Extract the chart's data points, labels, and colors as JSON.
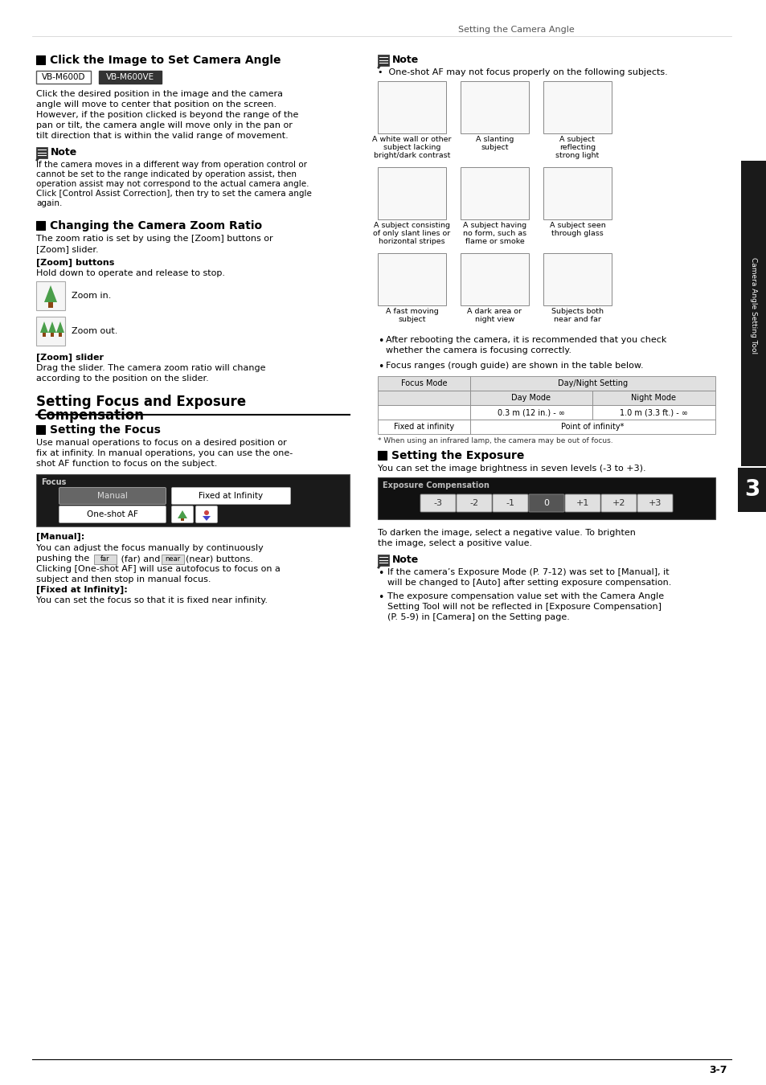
{
  "page_title": "Setting the Camera Angle",
  "chapter_num": "3",
  "page_num": "3-7",
  "sidebar_text": "Camera Angle Setting Tool",
  "bg_color": "#ffffff",
  "section1_title": "Click the Image to Set Camera Angle",
  "badge1": "VB-M600D",
  "badge2": "VB-M600VE",
  "section1_body": [
    "Click the desired position in the image and the camera",
    "angle will move to center that position on the screen.",
    "However, if the position clicked is beyond the range of the",
    "pan or tilt, the camera angle will move only in the pan or",
    "tilt direction that is within the valid range of movement."
  ],
  "note1_title": "Note",
  "note1_body": [
    "If the camera moves in a different way from operation control or",
    "cannot be set to the range indicated by operation assist, then",
    "operation assist may not correspond to the actual camera angle.",
    "Click [Control Assist Correction], then try to set the camera angle",
    "again."
  ],
  "section2_title": "Changing the Camera Zoom Ratio",
  "section2_body": [
    "The zoom ratio is set by using the [Zoom] buttons or",
    "[Zoom] slider."
  ],
  "zoom_buttons_label": "[Zoom] buttons",
  "zoom_buttons_body": "Hold down to operate and release to stop.",
  "zoom_in_label": "Zoom in.",
  "zoom_out_label": "Zoom out.",
  "zoom_slider_label": "[Zoom] slider",
  "zoom_slider_body": [
    "Drag the slider. The camera zoom ratio will change",
    "according to the position on the slider."
  ],
  "main_section_title_line1": "Setting Focus and Exposure",
  "main_section_title_line2": "Compensation",
  "section3_title": "Setting the Focus",
  "section3_body": [
    "Use manual operations to focus on a desired position or",
    "fix at infinity. In manual operations, you can use the one-",
    "shot AF function to focus on the subject."
  ],
  "focus_panel_label": "Focus",
  "focus_btn1": "Manual",
  "focus_btn2": "Fixed at Infinity",
  "focus_btn3": "One-shot AF",
  "manual_label_title": "[Manual]:",
  "manual_label_body1": "You can adjust the focus manually by continuously",
  "manual_label_body2a": "pushing the ",
  "manual_label_body2b": "(far) and ",
  "manual_label_body2c": "(near) buttons.",
  "manual_label_body3": "Clicking [One-shot AF] will use autofocus to focus on a",
  "manual_label_body4": "subject and then stop in manual focus.",
  "manual_label_body5": "[Fixed at Infinity]:",
  "manual_label_body6": "You can set the focus so that it is fixed near infinity.",
  "right_note1_title": "Note",
  "right_note1_body": "One-shot AF may not focus properly on the following subjects.",
  "subjects_labels": [
    "A white wall or other\nsubject lacking\nbright/dark contrast",
    "A slanting\nsubject",
    "A subject\nreflecting\nstrong light",
    "A subject consisting\nof only slant lines or\nhorizontal stripes",
    "A subject having\nno form, such as\nflame or smoke",
    "A subject seen\nthrough glass",
    "A fast moving\nsubject",
    "A dark area or\nnight view",
    "Subjects both\nnear and far"
  ],
  "right_note2_body": [
    "After rebooting the camera, it is recommended that you check",
    "whether the camera is focusing correctly."
  ],
  "right_note3_body": "Focus ranges (rough guide) are shown in the table below.",
  "table_header_col1": "Focus Mode",
  "table_header_col2": "Day/Night Setting",
  "table_subheader1": "Day Mode",
  "table_subheader2": "Night Mode",
  "table_row1_col1": "Fixed at infinity",
  "table_row1_col2": "Point of infinity*",
  "table_row2_col1_day": "0.3 m (12 in.) - ∞",
  "table_row2_col1_night": "1.0 m (3.3 ft.) - ∞",
  "table_footnote": "* When using an infrared lamp, the camera may be out of focus.",
  "section4_title": "Setting the Exposure",
  "section4_body": "You can set the image brightness in seven levels (-3 to +3).",
  "exposure_panel_label": "Exposure Compensation",
  "exposure_values": [
    "-3",
    "-2",
    "-1",
    "0",
    "+1",
    "+2",
    "+3"
  ],
  "exposure_body": [
    "To darken the image, select a negative value. To brighten",
    "the image, select a positive value."
  ],
  "right_note4_title": "Note",
  "right_note4_bullet1_lines": [
    "If the camera’s Exposure Mode (P. 7-12) was set to [Manual], it",
    "will be changed to [Auto] after setting exposure compensation."
  ],
  "right_note4_bullet2_lines": [
    "The exposure compensation value set with the Camera Angle",
    "Setting Tool will not be reflected in [Exposure Compensation]",
    "(P. 5-9) in [Camera] on the Setting page."
  ]
}
